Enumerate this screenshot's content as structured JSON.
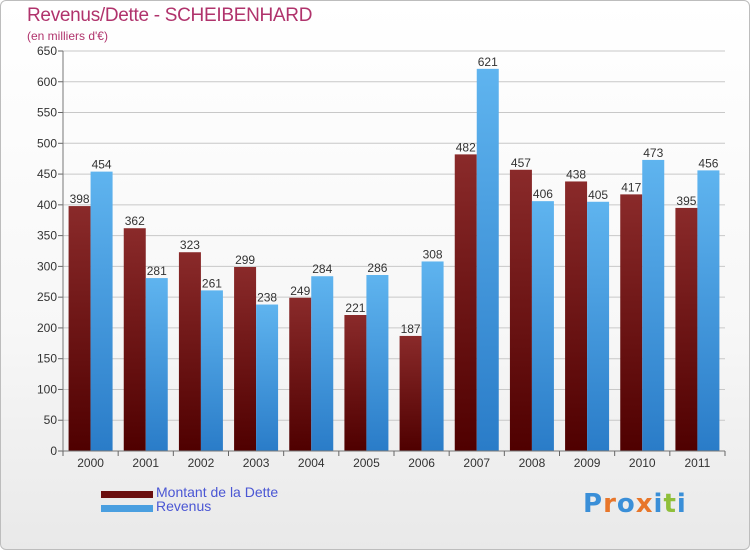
{
  "header": {
    "title": "Revenus/Dette - SCHEIBENHARD",
    "subtitle": "(en milliers d'€)"
  },
  "chart_data": {
    "type": "bar",
    "categories": [
      "2000",
      "2001",
      "2002",
      "2003",
      "2004",
      "2005",
      "2006",
      "2007",
      "2008",
      "2009",
      "2010",
      "2011"
    ],
    "series": [
      {
        "name": "Montant de la Dette",
        "color": "#7a1a1a",
        "values": [
          398,
          362,
          323,
          299,
          249,
          221,
          187,
          482,
          457,
          438,
          417,
          395
        ]
      },
      {
        "name": "Revenus",
        "color": "#4a9fe0",
        "values": [
          454,
          281,
          261,
          238,
          284,
          286,
          308,
          621,
          406,
          405,
          473,
          456
        ]
      }
    ],
    "ylim": [
      0,
      650
    ],
    "yticks": [
      0,
      50,
      100,
      150,
      200,
      250,
      300,
      350,
      400,
      450,
      500,
      550,
      600,
      650
    ],
    "grid": true,
    "legend_position": "bottom-left"
  },
  "legend": {
    "items": [
      {
        "label": "Montant de la Dette",
        "color": "#6b0f0f"
      },
      {
        "label": "Revenus",
        "color": "#4a9fe0"
      }
    ]
  },
  "brand": {
    "text": "Proxiti",
    "letters": [
      "P",
      "r",
      "o",
      "x",
      "i",
      "t",
      "i"
    ],
    "colors": [
      "#3a8fd8",
      "#e8762a",
      "#3a8fd8",
      "#e8762a",
      "#3a8fd8",
      "#8fbf3a",
      "#3a8fd8"
    ]
  }
}
